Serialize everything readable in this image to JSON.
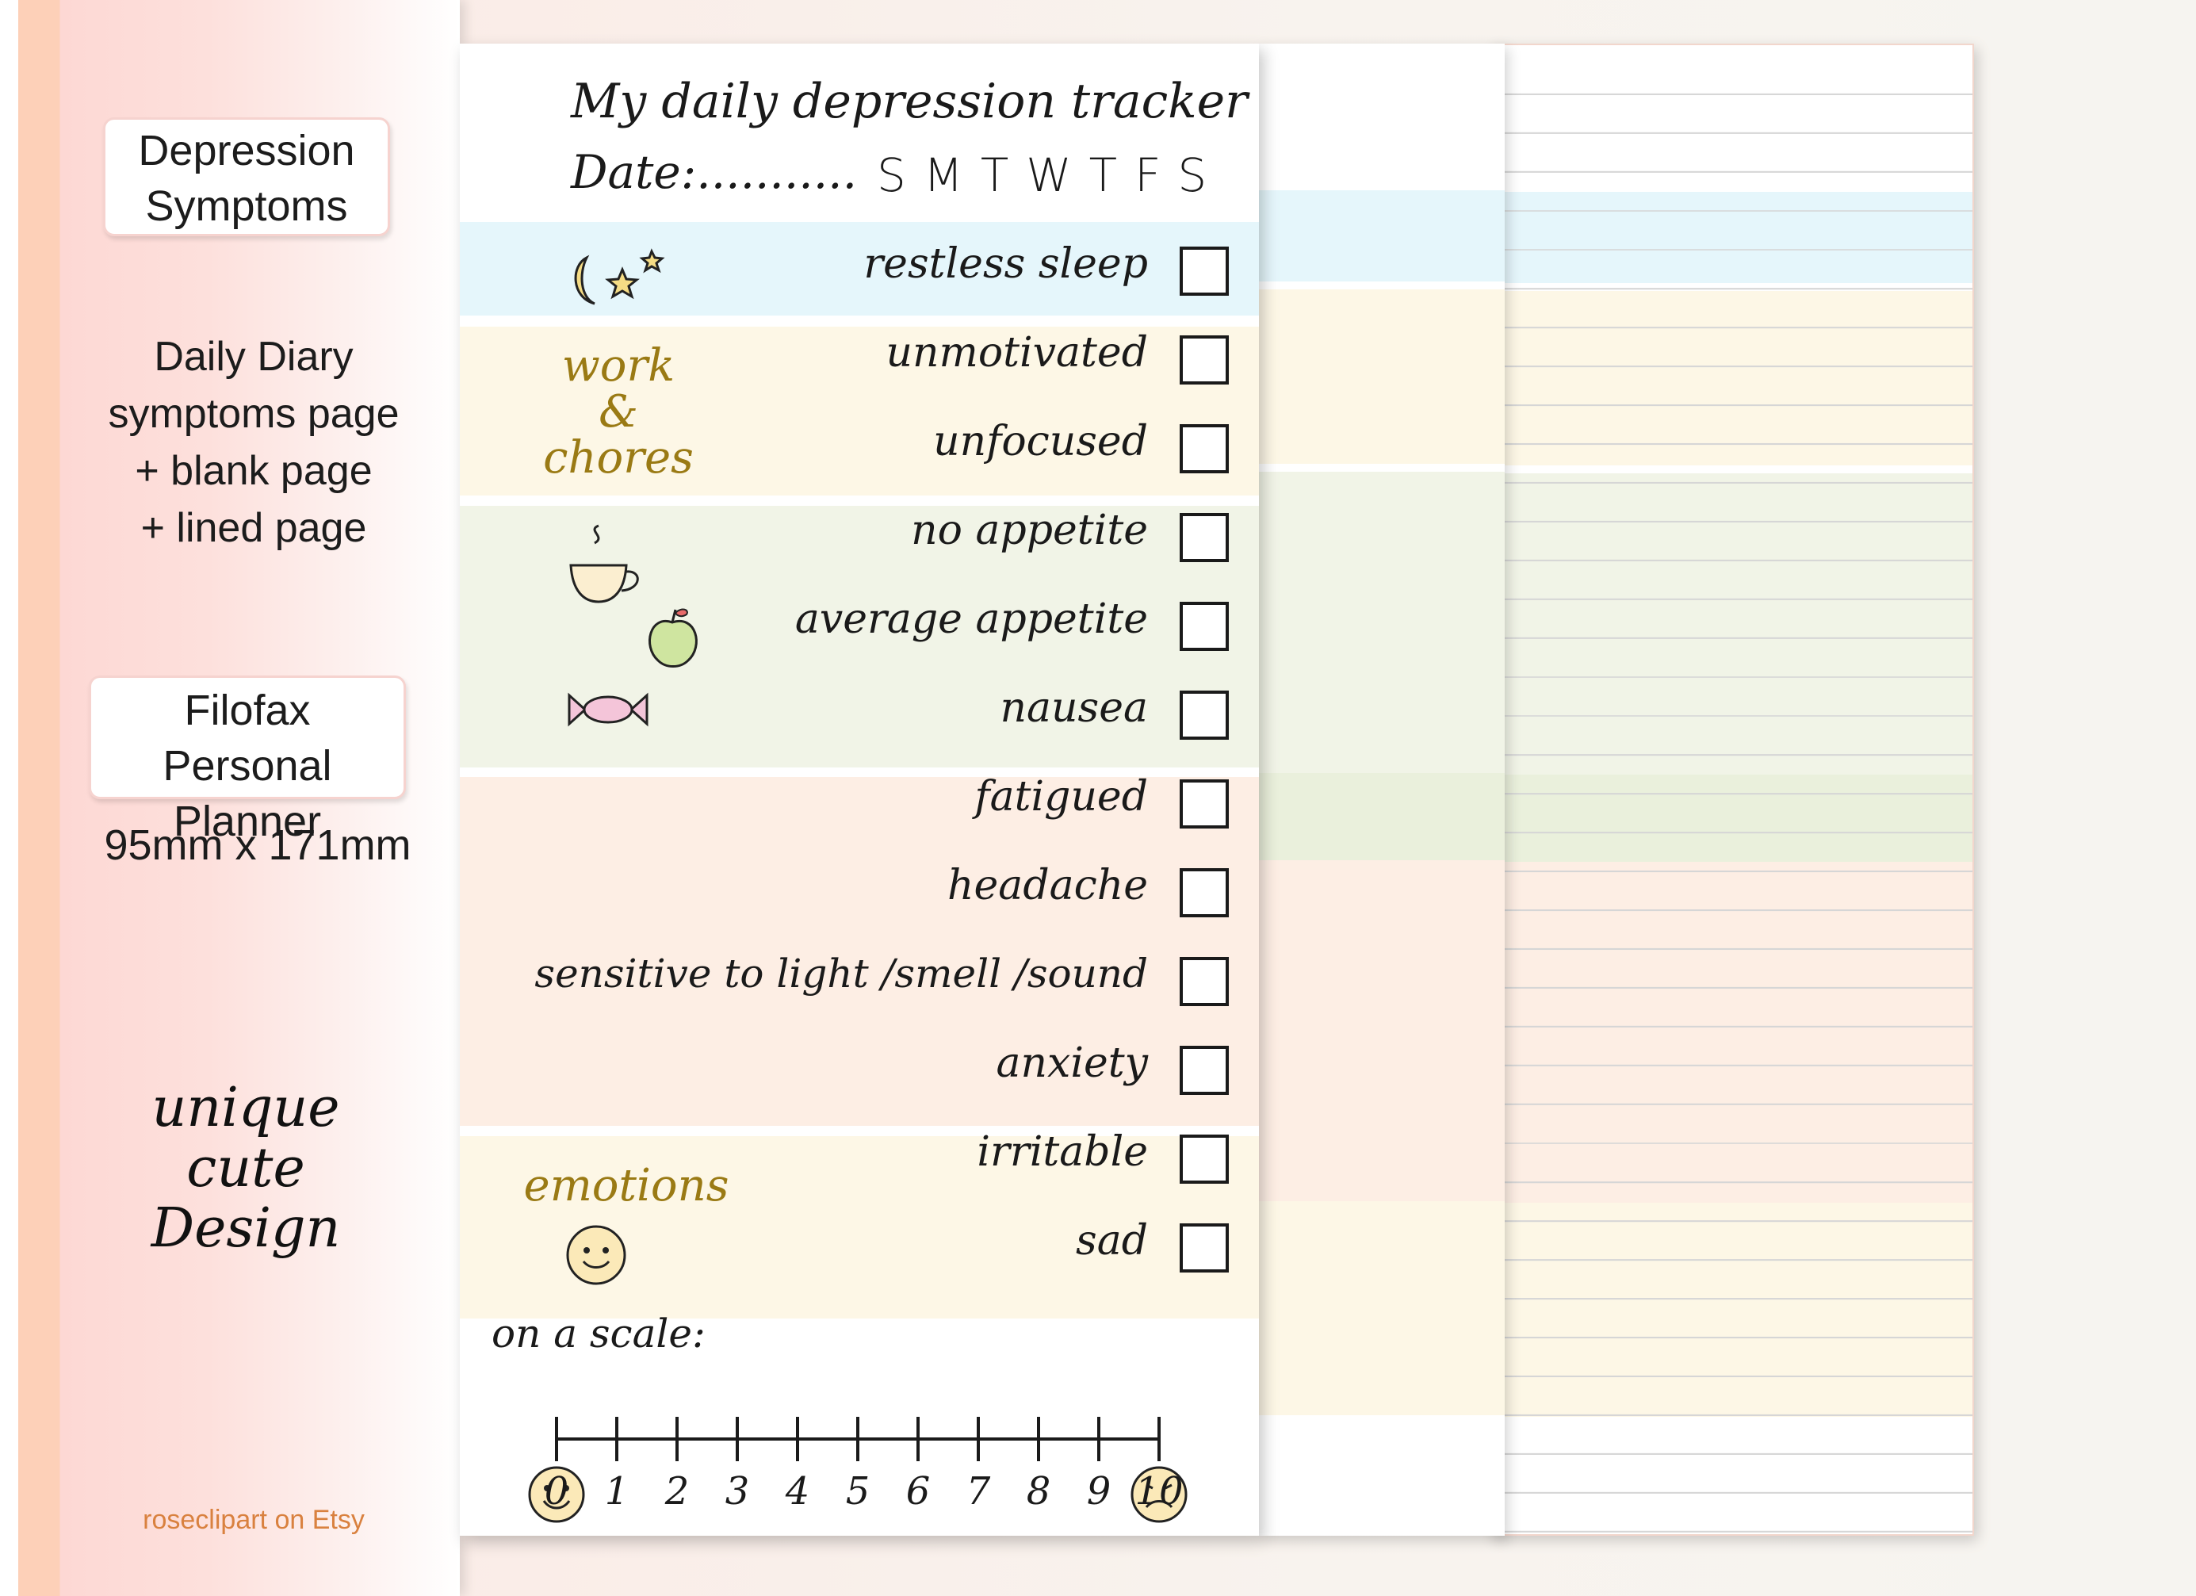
{
  "sidebar": {
    "badge_1_line1": "Depression",
    "badge_1_line2": "Symptoms",
    "desc_line1": "Daily Diary",
    "desc_line2": "symptoms page",
    "desc_line3": "+ blank page",
    "desc_line4": "+ lined page",
    "badge_2_line1": "Filofax",
    "badge_2_line2": "Personal Planner",
    "size": "95mm x 171mm",
    "tagline_1": "unique",
    "tagline_2": "cute",
    "tagline_3": "Design",
    "shop": "roseclipart on Etsy"
  },
  "tracker": {
    "title": "My daily depression tracker",
    "date_label": "Date:...........",
    "days": "SMTWTFS",
    "sections": {
      "work_label_1": "work",
      "work_label_2": "&",
      "work_label_3": "chores",
      "emotions_label": "emotions"
    },
    "items": [
      "restless sleep",
      "unmotivated",
      "unfocused",
      "no appetite",
      "average appetite",
      "nausea",
      "fatigued",
      "headache",
      "sensitive to light /smell /sound",
      "anxiety",
      "irritable",
      "sad"
    ],
    "scale_label": "on a scale:",
    "scale_numbers": [
      "0",
      "1",
      "2",
      "3",
      "4",
      "5",
      "6",
      "7",
      "8",
      "9",
      "10"
    ]
  },
  "colors": {
    "sleep": "#e5f6fb",
    "work": "#fdf7e6",
    "food": "#f1f4e7",
    "body": "#fdeee4",
    "emotions": "#fdf7e6",
    "section_label": "#9a7a14",
    "sidebar_stripe": "#fdd0b8",
    "shop_text": "#d9813f"
  },
  "icons": [
    "moon-icon",
    "star-icon",
    "teacup-icon",
    "apple-icon",
    "candy-icon",
    "smiley-icon",
    "happy-face-icon",
    "sad-face-icon"
  ]
}
